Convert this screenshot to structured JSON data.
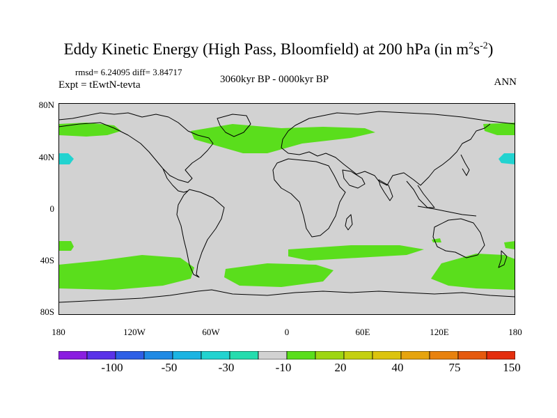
{
  "title": "Eddy Kinetic Energy (High Pass, Bloomfield) at 200 hPa (in m",
  "title_sup1": "2",
  "title_mid": "s",
  "title_sup2": "-2",
  "title_end": ")",
  "stats": "rmsd= 6.24095 diff= 3.84717",
  "expt": "Expt = tEwtN-tevta",
  "period": "3060kyr BP - 0000kyr BP",
  "season": "ANN",
  "lat_labels": [
    "80N",
    "40N",
    "0",
    "40S",
    "80S"
  ],
  "lon_labels": [
    "180",
    "120W",
    "60W",
    "0",
    "60E",
    "120E",
    "180"
  ],
  "colorbar": {
    "labels": [
      "-100",
      "-50",
      "-30",
      "-10",
      "20",
      "40",
      "75",
      "150"
    ],
    "colors": [
      "#8a1ee0",
      "#5a32e8",
      "#2e5fe6",
      "#1f8ae4",
      "#1bb4e2",
      "#22d3d0",
      "#25dcae",
      "#d2d2d2",
      "#5ade1c",
      "#9ed612",
      "#c4d010",
      "#dcc40e",
      "#e6a40e",
      "#e8820e",
      "#e65a0e",
      "#e42e0e"
    ]
  },
  "map_colors": {
    "background": "#d2d2d2",
    "positive": "#5ade1c",
    "negative": "#22d3d0",
    "coast": "#000000"
  }
}
